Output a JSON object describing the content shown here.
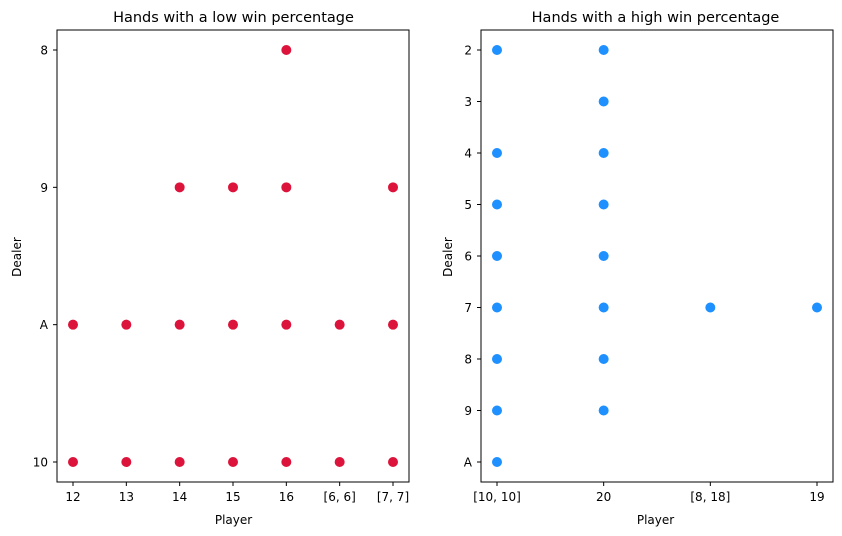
{
  "chart_data": [
    {
      "type": "scatter",
      "title": "Hands with a low win percentage",
      "xlabel": "Player",
      "ylabel": "Dealer",
      "x_categories": [
        "12",
        "13",
        "14",
        "15",
        "16",
        "[6, 6]",
        "[7, 7]"
      ],
      "y_categories": [
        "8",
        "9",
        "A",
        "10"
      ],
      "color": "#dc143c",
      "grid": false,
      "points": [
        {
          "x": "16",
          "y": "8"
        },
        {
          "x": "14",
          "y": "9"
        },
        {
          "x": "15",
          "y": "9"
        },
        {
          "x": "16",
          "y": "9"
        },
        {
          "x": "[7, 7]",
          "y": "9"
        },
        {
          "x": "12",
          "y": "A"
        },
        {
          "x": "13",
          "y": "A"
        },
        {
          "x": "14",
          "y": "A"
        },
        {
          "x": "15",
          "y": "A"
        },
        {
          "x": "16",
          "y": "A"
        },
        {
          "x": "[6, 6]",
          "y": "A"
        },
        {
          "x": "[7, 7]",
          "y": "A"
        },
        {
          "x": "12",
          "y": "10"
        },
        {
          "x": "13",
          "y": "10"
        },
        {
          "x": "14",
          "y": "10"
        },
        {
          "x": "15",
          "y": "10"
        },
        {
          "x": "16",
          "y": "10"
        },
        {
          "x": "[6, 6]",
          "y": "10"
        },
        {
          "x": "[7, 7]",
          "y": "10"
        }
      ]
    },
    {
      "type": "scatter",
      "title": "Hands with a high win percentage",
      "xlabel": "Player",
      "ylabel": "Dealer",
      "x_categories": [
        "[10, 10]",
        "20",
        "[8, 18]",
        "19"
      ],
      "y_categories": [
        "2",
        "3",
        "4",
        "5",
        "6",
        "7",
        "8",
        "9",
        "A"
      ],
      "color": "#1e90ff",
      "grid": false,
      "points": [
        {
          "x": "[10, 10]",
          "y": "2"
        },
        {
          "x": "[10, 10]",
          "y": "4"
        },
        {
          "x": "[10, 10]",
          "y": "5"
        },
        {
          "x": "[10, 10]",
          "y": "6"
        },
        {
          "x": "[10, 10]",
          "y": "7"
        },
        {
          "x": "[10, 10]",
          "y": "8"
        },
        {
          "x": "[10, 10]",
          "y": "9"
        },
        {
          "x": "[10, 10]",
          "y": "A"
        },
        {
          "x": "20",
          "y": "2"
        },
        {
          "x": "20",
          "y": "3"
        },
        {
          "x": "20",
          "y": "4"
        },
        {
          "x": "20",
          "y": "5"
        },
        {
          "x": "20",
          "y": "6"
        },
        {
          "x": "20",
          "y": "7"
        },
        {
          "x": "20",
          "y": "8"
        },
        {
          "x": "20",
          "y": "9"
        },
        {
          "x": "[8, 18]",
          "y": "7"
        },
        {
          "x": "19",
          "y": "7"
        }
      ]
    }
  ]
}
